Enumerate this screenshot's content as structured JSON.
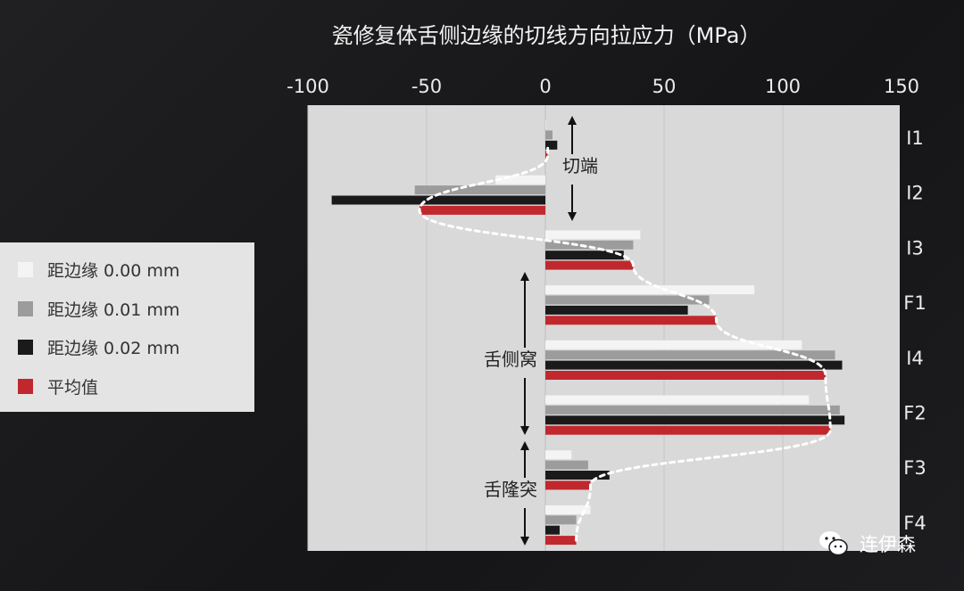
{
  "chart_data": {
    "type": "bar",
    "orientation": "horizontal",
    "title": "瓷修复体舌侧边缘的切线方向拉应力（MPa）",
    "xlim": [
      -100,
      150
    ],
    "x_ticks": [
      -100,
      -50,
      0,
      50,
      100,
      150
    ],
    "x_tick_labels": [
      "-100",
      "-50",
      "0",
      "50",
      "100",
      "150"
    ],
    "vertical_gridlines": [
      -100,
      -50,
      50,
      100
    ],
    "categories": [
      "I1",
      "I2",
      "I3",
      "F1",
      "I4",
      "F2",
      "F3",
      "F4"
    ],
    "series": [
      {
        "name": "距边缘 0.00 mm",
        "color": "#f4f4f4",
        "values": [
          0,
          -21,
          40,
          88,
          108,
          111,
          11,
          19
        ]
      },
      {
        "name": "距边缘 0.01 mm",
        "color": "#9c9c9c",
        "values": [
          3,
          -55,
          37,
          69,
          122,
          124,
          18,
          13
        ]
      },
      {
        "name": "距边缘 0.02 mm",
        "color": "#1a1a1a",
        "values": [
          5,
          -90,
          33,
          60,
          125,
          126,
          27,
          6
        ]
      },
      {
        "name": "平均值",
        "color": "#c0282d",
        "values": [
          1,
          -53,
          37,
          72,
          118,
          120,
          19,
          13
        ]
      }
    ],
    "trend_line": "dashed white curve through the average values",
    "annotations": [
      {
        "label": "切端",
        "spans": [
          "I1",
          "I2"
        ]
      },
      {
        "label": "舌侧窝",
        "spans": [
          "F1",
          "I4",
          "F2"
        ]
      },
      {
        "label": "舌隆突",
        "spans": [
          "F3",
          "F4"
        ]
      }
    ],
    "legend_position": "left",
    "colors": {
      "background": "#1a1a1c",
      "plot_area": "#d9d9d9",
      "accent_red": "#c0282d"
    }
  },
  "watermark": {
    "text": "连伊森",
    "icon": "wechat-icon"
  }
}
